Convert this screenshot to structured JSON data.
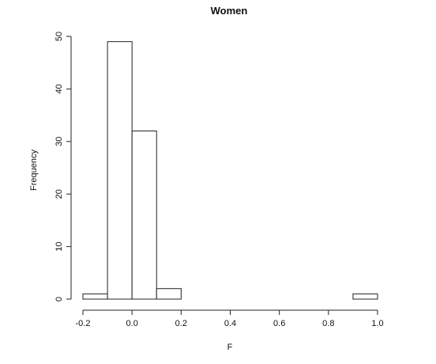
{
  "chart_data": {
    "type": "bar",
    "title": "Women",
    "xlabel": "F",
    "ylabel": "Frequency",
    "bins": [
      {
        "from": -0.2,
        "to": -0.1,
        "count": 1
      },
      {
        "from": -0.1,
        "to": 0.0,
        "count": 49
      },
      {
        "from": 0.0,
        "to": 0.1,
        "count": 32
      },
      {
        "from": 0.1,
        "to": 0.2,
        "count": 2
      },
      {
        "from": 0.2,
        "to": 0.3,
        "count": 0
      },
      {
        "from": 0.3,
        "to": 0.4,
        "count": 0
      },
      {
        "from": 0.4,
        "to": 0.5,
        "count": 0
      },
      {
        "from": 0.5,
        "to": 0.6,
        "count": 0
      },
      {
        "from": 0.6,
        "to": 0.7,
        "count": 0
      },
      {
        "from": 0.7,
        "to": 0.8,
        "count": 0
      },
      {
        "from": 0.8,
        "to": 0.9,
        "count": 0
      },
      {
        "from": 0.9,
        "to": 1.0,
        "count": 1
      }
    ],
    "xticks": [
      -0.2,
      0.0,
      0.2,
      0.4,
      0.6,
      0.8,
      1.0
    ],
    "xtick_labels": [
      "-0.2",
      "0.0",
      "0.2",
      "0.4",
      "0.6",
      "0.8",
      "1.0"
    ],
    "yticks": [
      0,
      10,
      20,
      30,
      40,
      50
    ],
    "ytick_labels": [
      "0",
      "10",
      "20",
      "30",
      "40",
      "50"
    ],
    "xlim": [
      -0.2,
      1.0
    ],
    "ylim": [
      0,
      50
    ],
    "grid": false,
    "legend": "none"
  }
}
